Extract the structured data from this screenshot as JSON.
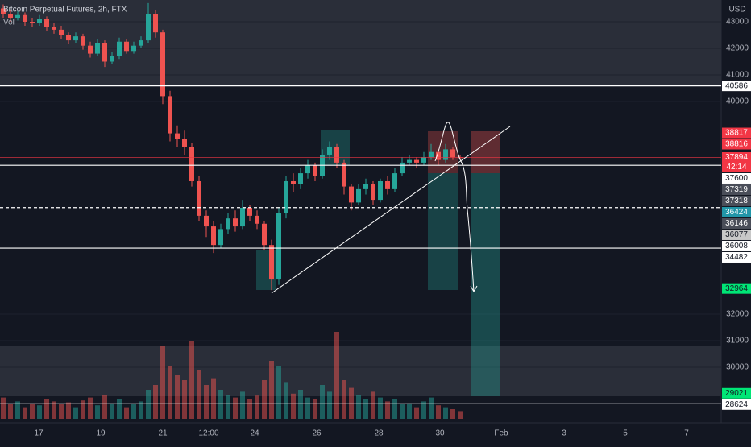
{
  "chart_data": {
    "type": "candlestick",
    "title": "Bitcoin Perpetual Futures, 2h, FTX",
    "volume_label": "Vol",
    "currency": "USD",
    "ylim": [
      28060,
      43818
    ],
    "yticks": [
      43000,
      42000,
      41000,
      40000,
      32000,
      31000,
      30000
    ],
    "xticks": [
      "17",
      "19",
      "21",
      "12:00",
      "24",
      "26",
      "28",
      "30",
      "Feb",
      "3",
      "5",
      "7"
    ],
    "up_color": "#26a69a",
    "down_color": "#ef5350",
    "candles": [
      [
        43500,
        43650,
        43150,
        43300
      ],
      [
        43300,
        43450,
        43000,
        43150
      ],
      [
        43150,
        43400,
        43050,
        43250
      ],
      [
        43250,
        43350,
        42850,
        43000
      ],
      [
        43000,
        43150,
        42800,
        42950
      ],
      [
        42950,
        43250,
        42850,
        43100
      ],
      [
        43100,
        43200,
        42650,
        42800
      ],
      [
        42800,
        42950,
        42550,
        42700
      ],
      [
        42700,
        42850,
        42350,
        42500
      ],
      [
        42500,
        42600,
        42150,
        42300
      ],
      [
        42300,
        42600,
        42200,
        42450
      ],
      [
        42450,
        42550,
        41950,
        42100
      ],
      [
        42100,
        42250,
        41650,
        41800
      ],
      [
        41800,
        42350,
        41700,
        42200
      ],
      [
        42200,
        42300,
        41300,
        41500
      ],
      [
        41500,
        41850,
        41400,
        41700
      ],
      [
        41700,
        42400,
        41600,
        42250
      ],
      [
        42250,
        42350,
        41800,
        41900
      ],
      [
        41900,
        42250,
        41800,
        42100
      ],
      [
        42100,
        42450,
        42000,
        42300
      ],
      [
        42300,
        43700,
        42200,
        43300
      ],
      [
        43300,
        43450,
        42400,
        42600
      ],
      [
        42600,
        42700,
        39900,
        40200
      ],
      [
        40200,
        40400,
        38500,
        38800
      ],
      [
        38800,
        39100,
        38300,
        38600
      ],
      [
        38600,
        38900,
        38000,
        38300
      ],
      [
        38300,
        38450,
        36800,
        37000
      ],
      [
        37000,
        37200,
        35500,
        35700
      ],
      [
        35700,
        35900,
        34900,
        35300
      ],
      [
        35300,
        35500,
        34300,
        34600
      ],
      [
        34600,
        35400,
        34500,
        35200
      ],
      [
        35200,
        35800,
        35000,
        35600
      ],
      [
        35600,
        35900,
        35100,
        35300
      ],
      [
        35300,
        36300,
        35200,
        36000
      ],
      [
        36000,
        36100,
        35500,
        35700
      ],
      [
        35700,
        35900,
        35200,
        35400
      ],
      [
        35400,
        35500,
        34400,
        34600
      ],
      [
        34600,
        34800,
        32900,
        33300
      ],
      [
        33300,
        36000,
        33100,
        35800
      ],
      [
        35800,
        37200,
        35600,
        37000
      ],
      [
        37000,
        37300,
        36600,
        36900
      ],
      [
        36900,
        37500,
        36700,
        37300
      ],
      [
        37300,
        37800,
        37100,
        37600
      ],
      [
        37600,
        37700,
        37000,
        37200
      ],
      [
        37200,
        38200,
        37100,
        38000
      ],
      [
        38000,
        38500,
        37800,
        38300
      ],
      [
        38300,
        38400,
        37500,
        37700
      ],
      [
        37700,
        37800,
        36500,
        36800
      ],
      [
        36800,
        36900,
        35900,
        36200
      ],
      [
        36200,
        36900,
        36100,
        36700
      ],
      [
        36700,
        37100,
        36500,
        36900
      ],
      [
        36900,
        37000,
        36100,
        36300
      ],
      [
        36300,
        37100,
        36200,
        37000
      ],
      [
        37000,
        37200,
        36500,
        36700
      ],
      [
        36700,
        37500,
        36600,
        37300
      ],
      [
        37300,
        37900,
        37200,
        37700
      ],
      [
        37700,
        38000,
        37600,
        37800
      ],
      [
        37800,
        37900,
        37500,
        37700
      ],
      [
        37700,
        38100,
        37600,
        37900
      ],
      [
        37900,
        38400,
        37800,
        38100
      ],
      [
        38100,
        38200,
        37600,
        37800
      ],
      [
        37800,
        38400,
        37700,
        38200
      ],
      [
        38200,
        38300,
        37800,
        37900
      ],
      [
        37900,
        38000,
        37800,
        37894
      ]
    ],
    "volume_lim": [
      0,
      100
    ],
    "volumes": [
      22,
      15,
      18,
      12,
      16,
      14,
      20,
      18,
      15,
      17,
      12,
      19,
      22,
      14,
      25,
      16,
      20,
      12,
      15,
      18,
      30,
      35,
      75,
      55,
      45,
      40,
      80,
      50,
      35,
      42,
      30,
      25,
      22,
      28,
      20,
      24,
      40,
      60,
      55,
      38,
      26,
      30,
      22,
      20,
      35,
      28,
      90,
      40,
      32,
      25,
      20,
      28,
      22,
      18,
      20,
      15,
      16,
      12,
      18,
      22,
      14,
      12,
      10,
      8
    ],
    "lines": [
      {
        "value": 40586,
        "style": "solid",
        "color": "#ffffff"
      },
      {
        "value": 37600,
        "style": "solid",
        "color": "#ffffff"
      },
      {
        "value": 36008,
        "style": "dashed",
        "color": "#ffffff"
      },
      {
        "value": 34482,
        "style": "solid",
        "color": "#ffffff"
      },
      {
        "value": 28624,
        "style": "solid",
        "color": "#ffffff"
      },
      {
        "value": 37894,
        "style": "solid",
        "color": "#f23645"
      }
    ],
    "price_labels": [
      {
        "value": 40586,
        "color": "#ffffff"
      },
      {
        "value": 38817,
        "color": "#f23645"
      },
      {
        "value": 38816,
        "color": "#f23645"
      },
      {
        "value": 37894,
        "color": "#f23645",
        "countdown": "42:14"
      },
      {
        "value": 37600,
        "color": "#ffffff"
      },
      {
        "value": 37319,
        "color": "#4a4e59"
      },
      {
        "value": 37318,
        "color": "#4a4e59"
      },
      {
        "value": 36424,
        "color": "#2196a8"
      },
      {
        "value": 36146,
        "color": "#4a4e59"
      },
      {
        "value": 36077,
        "color": "#c8c8c8"
      },
      {
        "value": 36008,
        "color": "#ffffff"
      },
      {
        "value": 34482,
        "color": "#ffffff"
      },
      {
        "value": 32964,
        "color": "#00e676"
      },
      {
        "value": 29021,
        "color": "#00e676"
      },
      {
        "value": 28624,
        "color": "#ffffff"
      }
    ]
  }
}
